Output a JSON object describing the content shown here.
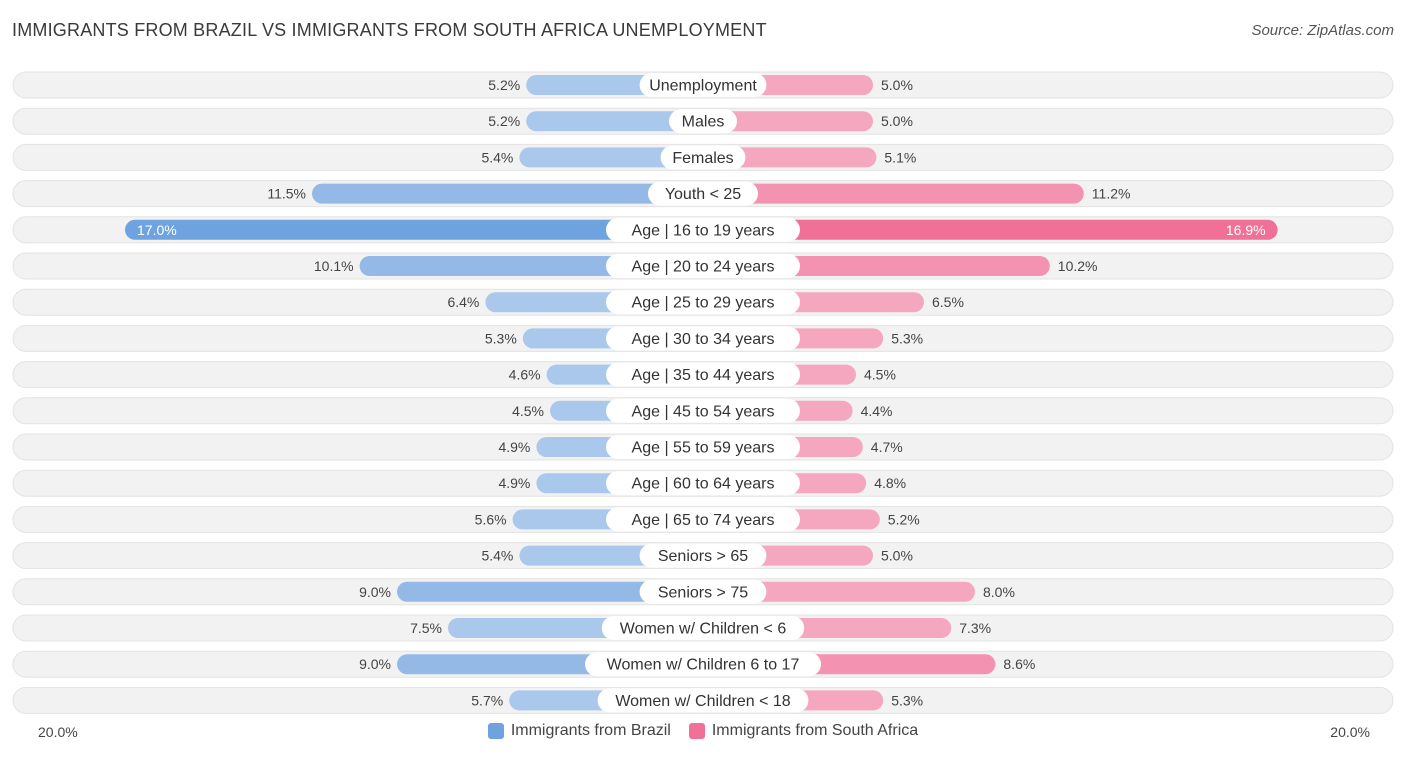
{
  "title": "IMMIGRANTS FROM BRAZIL VS IMMIGRANTS FROM SOUTH AFRICA UNEMPLOYMENT",
  "source": "Source: ZipAtlas.com",
  "colors": {
    "brazil": "#6fa3e0",
    "brazil_light": "#a9c8ec",
    "south_africa": "#f07098",
    "south_africa_light": "#f5a7bf",
    "row_bg": "#f1f1f1"
  },
  "chart_data": {
    "type": "bar",
    "orientation": "horizontal-diverging",
    "categories": [
      "Unemployment",
      "Males",
      "Females",
      "Youth < 25",
      "Age | 16 to 19 years",
      "Age | 20 to 24 years",
      "Age | 25 to 29 years",
      "Age | 30 to 34 years",
      "Age | 35 to 44 years",
      "Age | 45 to 54 years",
      "Age | 55 to 59 years",
      "Age | 60 to 64 years",
      "Age | 65 to 74 years",
      "Seniors > 65",
      "Seniors > 75",
      "Women w/ Children < 6",
      "Women w/ Children 6 to 17",
      "Women w/ Children < 18"
    ],
    "series": [
      {
        "name": "Immigrants from Brazil",
        "values": [
          5.2,
          5.2,
          5.4,
          11.5,
          17.0,
          10.1,
          6.4,
          5.3,
          4.6,
          4.5,
          4.9,
          4.9,
          5.6,
          5.4,
          9.0,
          7.5,
          9.0,
          5.7
        ],
        "labels": [
          "5.2%",
          "5.2%",
          "5.4%",
          "11.5%",
          "17.0%",
          "10.1%",
          "6.4%",
          "5.3%",
          "4.6%",
          "4.5%",
          "4.9%",
          "4.9%",
          "5.6%",
          "5.4%",
          "9.0%",
          "7.5%",
          "9.0%",
          "5.7%"
        ]
      },
      {
        "name": "Immigrants from South Africa",
        "values": [
          5.0,
          5.0,
          5.1,
          11.2,
          16.9,
          10.2,
          6.5,
          5.3,
          4.5,
          4.4,
          4.7,
          4.8,
          5.2,
          5.0,
          8.0,
          7.3,
          8.6,
          5.3
        ],
        "labels": [
          "5.0%",
          "5.0%",
          "5.1%",
          "11.2%",
          "16.9%",
          "10.2%",
          "6.5%",
          "5.3%",
          "4.5%",
          "4.4%",
          "4.7%",
          "4.8%",
          "5.2%",
          "5.0%",
          "8.0%",
          "7.3%",
          "8.6%",
          "5.3%"
        ]
      }
    ],
    "xlim": [
      -20,
      20
    ],
    "axis_labels": {
      "left": "20.0%",
      "right": "20.0%"
    },
    "legend_position": "bottom-center"
  }
}
